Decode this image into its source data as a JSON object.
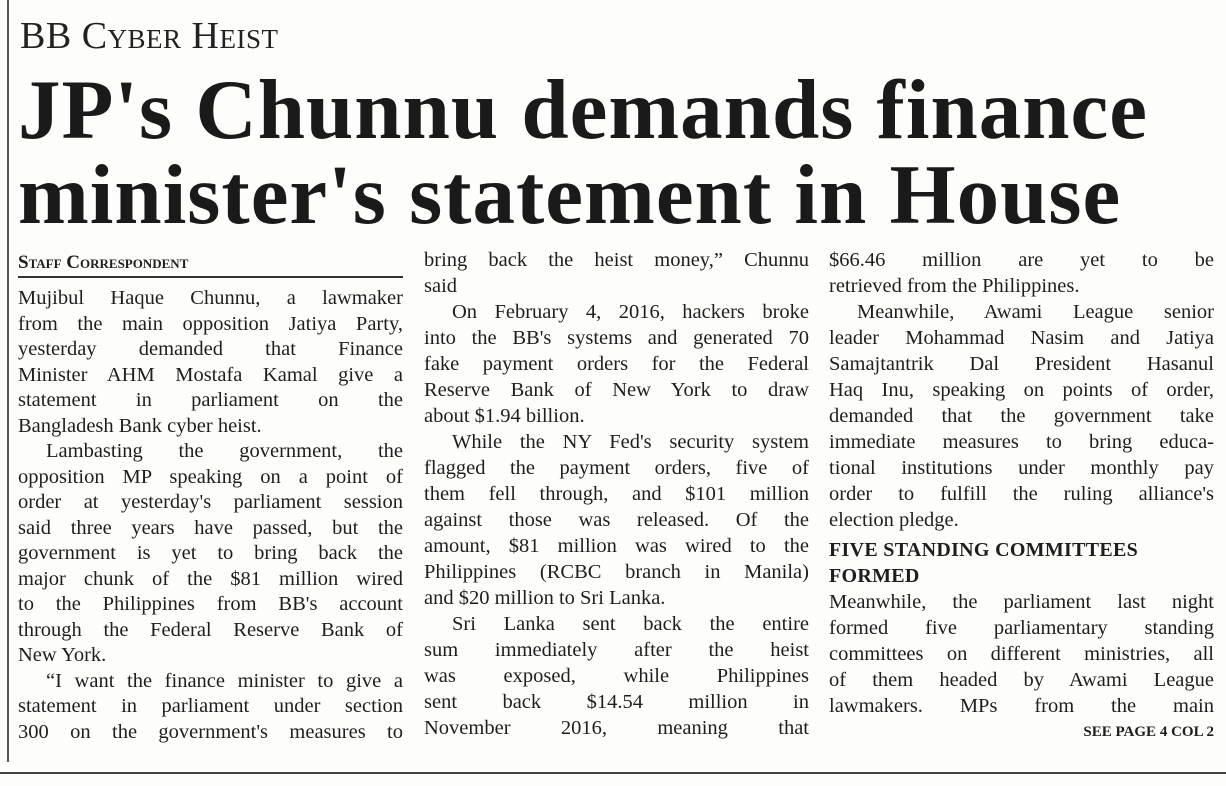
{
  "kicker": "BB Cyber Heist",
  "headline": [
    "JP's Chunnu demands finance",
    "minister's statement in House"
  ],
  "byline": "Staff Correspondent",
  "columns": [
    {
      "paragraphs": [
        {
          "lines": [
            "Mujibul Haque Chunnu, a lawmaker",
            "from the main opposition Jatiya Party,",
            "yesterday demanded that Finance",
            "Minister AHM Mostafa Kamal give a",
            "statement in parliament on the",
            "Bangladesh Bank cyber heist."
          ]
        },
        {
          "lines": [
            "Lambasting the government, the",
            "opposition MP speaking on a point of",
            "order at yesterday's parliament session",
            "said three years have passed, but the",
            "government is yet to bring back the",
            "major chunk of the $81 million wired",
            "to the Philippines from BB's account",
            "through the Federal Reserve Bank of",
            "New York."
          ]
        },
        {
          "lines": [
            "“I want the finance minister to give a",
            "statement in parliament under section",
            "300 on the government's measures to"
          ],
          "continues_next_column": true
        }
      ]
    },
    {
      "paragraphs": [
        {
          "continued": true,
          "lines": [
            "bring back the heist money,” Chunnu",
            "said"
          ]
        },
        {
          "lines": [
            "On February 4, 2016, hackers broke",
            "into the BB's systems and generated 70",
            "fake payment orders for the Federal",
            "Reserve Bank of New York to draw",
            "about $1.94 billion."
          ]
        },
        {
          "lines": [
            "While the NY Fed's security system",
            "flagged the payment orders, five of",
            "them fell through, and $101 million",
            "against those was released. Of the",
            "amount, $81 million was wired to the",
            "Philippines (RCBC branch in Manila)",
            "and $20 million to Sri Lanka."
          ]
        },
        {
          "lines": [
            "Sri Lanka sent back the entire",
            "sum immediately after the heist",
            "was exposed, while Philippines",
            "sent back $14.54 million in",
            "November 2016, meaning that"
          ],
          "continues_next_column": true
        }
      ]
    },
    {
      "paragraphs": [
        {
          "continued": true,
          "lines": [
            "$66.46 million are yet to be",
            "retrieved from the Philippines."
          ]
        },
        {
          "lines": [
            "Meanwhile, Awami League senior",
            "leader Mohammad Nasim and Jatiya",
            "Samajtantrik Dal President Hasanul",
            "Haq Inu, speaking on points of order,",
            "demanded that the government take",
            "immediate measures to bring educa-",
            "tional institutions under monthly pay",
            "order to fulfill the ruling alliance's",
            "election pledge."
          ]
        }
      ],
      "subhead": [
        "FIVE STANDING COMMITTEES",
        "FORMED"
      ],
      "after_subhead": {
        "lines": [
          "Meanwhile, the parliament last night",
          "formed five parliamentary standing",
          "committees on different ministries, all",
          "of them headed by Awami League",
          "lawmakers. MPs from the main"
        ],
        "continues_next_column": true
      },
      "jump": "SEE PAGE 4 COL 2"
    }
  ]
}
